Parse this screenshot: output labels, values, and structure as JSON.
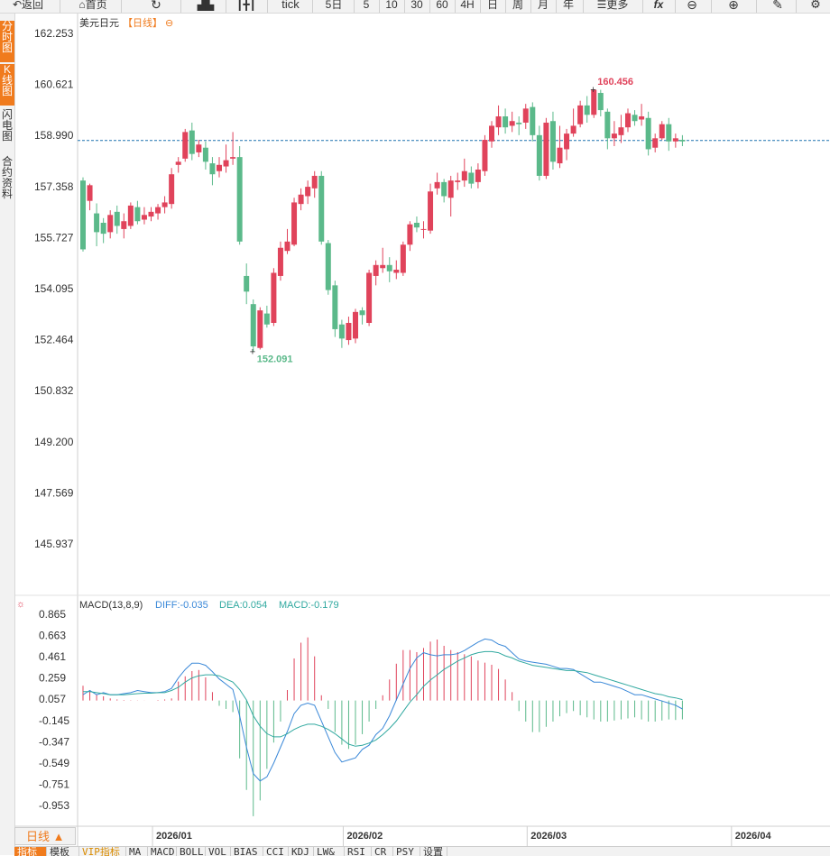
{
  "toolbar": {
    "back": "返回",
    "home": "首页",
    "tick": "tick",
    "periods": [
      "5日",
      "5",
      "10",
      "30",
      "60",
      "4H",
      "日",
      "周",
      "月",
      "年"
    ],
    "more": "更多",
    "fx": "fx"
  },
  "side_tabs": {
    "timeshare": "分时图",
    "kline": "K线图",
    "flash": "闪电图",
    "contract": "合约资料"
  },
  "header": {
    "symbol": "美元日元",
    "period": "【日线】",
    "circle": "⊖"
  },
  "macd_header": {
    "title": "MACD(13,8,9)",
    "diff": "DIFF:-0.035",
    "dea": "DEA:0.054",
    "macd": "MACD:-0.179"
  },
  "period_tab": "日线 ▲",
  "bottom_tabs": [
    "指标",
    "模板",
    "VIP指标",
    "MA",
    "MACD",
    "BOLL",
    "VOL",
    "BIAS",
    "CCI",
    "KDJ",
    "LW&",
    "RSI",
    "CR",
    "PSY",
    "设置"
  ],
  "colors": {
    "up": "#e0435b",
    "down": "#5bb98a",
    "diff": "#3a88d8",
    "dea": "#31a9a0",
    "accent": "#f07b1d",
    "last_line": "#1e72b0"
  },
  "chart_data": {
    "type": "candlestick",
    "title": "美元日元",
    "price_axis": {
      "ticks": [
        "162.253",
        "160.621",
        "158.990",
        "157.358",
        "155.727",
        "154.095",
        "152.464",
        "150.832",
        "149.200",
        "147.569",
        "145.937"
      ],
      "ylim": [
        144.3,
        163.0
      ]
    },
    "date_labels": [
      {
        "label": "2026/01",
        "index": 11
      },
      {
        "label": "2026/02",
        "index": 39
      },
      {
        "label": "2026/03",
        "index": 66
      },
      {
        "label": "2026/04",
        "index": 96
      }
    ],
    "high_annotation": "160.456",
    "low_annotation": "152.091",
    "last_price": 158.83,
    "candles": [
      [
        157.55,
        155.35,
        157.65,
        155.28
      ],
      [
        156.9,
        157.4,
        157.45,
        156.6
      ],
      [
        156.5,
        155.9,
        156.82,
        155.45
      ],
      [
        156.2,
        155.85,
        156.35,
        155.55
      ],
      [
        155.9,
        156.45,
        156.6,
        155.7
      ],
      [
        156.55,
        156.1,
        156.75,
        155.85
      ],
      [
        156.0,
        156.25,
        156.5,
        155.7
      ],
      [
        156.1,
        156.75,
        156.85,
        156.0
      ],
      [
        156.7,
        156.25,
        156.9,
        156.15
      ],
      [
        156.3,
        156.45,
        156.7,
        156.15
      ],
      [
        156.4,
        156.55,
        156.7,
        156.25
      ],
      [
        156.5,
        156.7,
        156.8,
        156.3
      ],
      [
        156.7,
        156.85,
        157.05,
        156.5
      ],
      [
        156.8,
        157.75,
        157.95,
        156.65
      ],
      [
        158.05,
        158.15,
        158.3,
        157.8
      ],
      [
        158.25,
        159.1,
        159.2,
        158.15
      ],
      [
        159.15,
        158.4,
        159.4,
        158.2
      ],
      [
        158.45,
        158.7,
        158.85,
        158.3
      ],
      [
        158.6,
        158.15,
        158.8,
        157.9
      ],
      [
        158.1,
        157.75,
        158.3,
        157.4
      ],
      [
        157.85,
        158.05,
        158.3,
        157.65
      ],
      [
        158.0,
        158.2,
        158.7,
        157.8
      ],
      [
        158.25,
        158.3,
        159.1,
        158.05
      ],
      [
        158.3,
        155.6,
        158.65,
        155.5
      ],
      [
        154.5,
        154.0,
        154.9,
        153.6
      ],
      [
        153.6,
        152.25,
        153.75,
        152.09
      ],
      [
        152.2,
        153.4,
        153.5,
        152.15
      ],
      [
        153.3,
        152.95,
        153.55,
        152.85
      ],
      [
        153.0,
        154.6,
        154.75,
        152.9
      ],
      [
        154.5,
        155.4,
        155.6,
        154.35
      ],
      [
        155.3,
        155.6,
        156.0,
        155.2
      ],
      [
        155.5,
        156.85,
        157.0,
        155.45
      ],
      [
        156.8,
        157.1,
        157.3,
        156.6
      ],
      [
        157.05,
        157.35,
        157.55,
        156.8
      ],
      [
        157.3,
        157.7,
        157.85,
        157.0
      ],
      [
        157.7,
        155.6,
        157.85,
        155.5
      ],
      [
        155.55,
        154.05,
        155.65,
        153.9
      ],
      [
        154.2,
        152.8,
        154.35,
        152.55
      ],
      [
        152.95,
        152.5,
        153.1,
        152.2
      ],
      [
        152.45,
        153.0,
        153.2,
        152.3
      ],
      [
        152.5,
        153.35,
        153.45,
        152.35
      ],
      [
        153.4,
        153.25,
        153.5,
        152.95
      ],
      [
        153.0,
        154.6,
        154.7,
        152.9
      ],
      [
        154.5,
        154.85,
        155.0,
        154.2
      ],
      [
        154.75,
        154.85,
        155.4,
        154.6
      ],
      [
        154.85,
        154.65,
        155.1,
        154.3
      ],
      [
        154.6,
        154.7,
        155.0,
        154.4
      ],
      [
        154.6,
        155.5,
        155.6,
        154.5
      ],
      [
        155.5,
        156.15,
        156.25,
        155.3
      ],
      [
        156.2,
        156.05,
        156.4,
        155.9
      ],
      [
        156.0,
        156.0,
        156.25,
        155.7
      ],
      [
        155.95,
        157.2,
        157.45,
        155.85
      ],
      [
        157.3,
        157.5,
        157.8,
        157.1
      ],
      [
        157.5,
        157.05,
        157.6,
        156.85
      ],
      [
        157.0,
        157.55,
        157.7,
        156.4
      ],
      [
        157.5,
        157.55,
        157.8,
        157.25
      ],
      [
        157.55,
        157.85,
        158.25,
        157.35
      ],
      [
        157.8,
        157.45,
        158.0,
        157.3
      ],
      [
        157.5,
        157.9,
        158.1,
        157.3
      ],
      [
        157.85,
        158.85,
        159.0,
        157.7
      ],
      [
        158.8,
        159.3,
        159.45,
        158.6
      ],
      [
        159.25,
        159.6,
        159.95,
        159.0
      ],
      [
        159.6,
        159.25,
        159.85,
        159.05
      ],
      [
        159.3,
        159.45,
        159.75,
        159.1
      ],
      [
        159.4,
        159.35,
        159.6,
        159.0
      ],
      [
        159.4,
        159.85,
        160.0,
        159.2
      ],
      [
        159.9,
        159.0,
        160.05,
        158.8
      ],
      [
        159.0,
        157.7,
        159.3,
        157.55
      ],
      [
        157.7,
        159.4,
        159.55,
        157.6
      ],
      [
        159.45,
        158.15,
        159.75,
        157.9
      ],
      [
        158.1,
        158.6,
        159.3,
        157.95
      ],
      [
        158.55,
        159.05,
        159.2,
        158.2
      ],
      [
        159.05,
        159.3,
        159.85,
        158.95
      ],
      [
        159.35,
        159.95,
        160.1,
        159.25
      ],
      [
        159.95,
        159.65,
        160.25,
        159.4
      ],
      [
        159.65,
        160.45,
        160.46,
        159.55
      ],
      [
        160.35,
        159.8,
        160.45,
        159.6
      ],
      [
        159.75,
        158.9,
        159.85,
        158.55
      ],
      [
        158.9,
        159.05,
        159.45,
        158.65
      ],
      [
        159.0,
        159.25,
        159.65,
        158.75
      ],
      [
        159.25,
        159.7,
        159.85,
        159.1
      ],
      [
        159.65,
        159.45,
        159.8,
        159.3
      ],
      [
        159.5,
        159.6,
        160.0,
        159.3
      ],
      [
        159.55,
        158.55,
        159.75,
        158.35
      ],
      [
        158.6,
        158.9,
        159.05,
        158.45
      ],
      [
        158.9,
        159.35,
        159.45,
        158.85
      ],
      [
        159.35,
        158.8,
        159.55,
        158.5
      ],
      [
        158.8,
        158.9,
        159.05,
        158.6
      ],
      [
        158.85,
        158.8,
        159.0,
        158.65
      ]
    ],
    "macd_axis": {
      "ticks": [
        "0.865",
        "0.663",
        "0.461",
        "0.259",
        "0.057",
        "-0.145",
        "-0.347",
        "-0.549",
        "-0.751",
        "-0.953"
      ],
      "ylim": [
        -1.155,
        0.865
      ]
    },
    "macd_hist": [
      0.14,
      0.09,
      0.06,
      0.04,
      0.02,
      0.01,
      0.005,
      0.003,
      0.002,
      0.001,
      0.0,
      0.005,
      0.01,
      0.02,
      0.18,
      0.23,
      0.28,
      0.29,
      0.22,
      0.08,
      -0.05,
      -0.08,
      -0.11,
      -0.55,
      -0.85,
      -1.1,
      -0.95,
      -0.65,
      -0.4,
      -0.2,
      0.1,
      0.4,
      0.55,
      0.6,
      0.42,
      0.05,
      -0.08,
      -0.3,
      -0.42,
      -0.46,
      -0.42,
      -0.32,
      -0.2,
      -0.08,
      0.05,
      0.2,
      0.35,
      0.48,
      0.48,
      0.46,
      0.5,
      0.56,
      0.58,
      0.52,
      0.48,
      0.46,
      0.44,
      0.42,
      0.38,
      0.36,
      0.34,
      0.3,
      0.2,
      0.08,
      -0.1,
      -0.2,
      -0.3,
      -0.3,
      -0.25,
      -0.2,
      -0.15,
      -0.12,
      -0.1,
      -0.14,
      -0.16,
      -0.18,
      -0.2,
      -0.2,
      -0.19,
      -0.18,
      -0.17,
      -0.16,
      -0.18,
      -0.2,
      -0.2,
      -0.19,
      -0.18,
      -0.185,
      -0.179
    ],
    "macd_diff": [
      0.1,
      0.14,
      0.1,
      0.12,
      0.1,
      0.1,
      0.11,
      0.12,
      0.14,
      0.13,
      0.12,
      0.12,
      0.13,
      0.16,
      0.26,
      0.34,
      0.4,
      0.4,
      0.38,
      0.32,
      0.25,
      0.2,
      0.15,
      -0.1,
      -0.4,
      -0.65,
      -0.72,
      -0.68,
      -0.55,
      -0.4,
      -0.25,
      -0.08,
      0.0,
      0.02,
      0.0,
      -0.15,
      -0.3,
      -0.45,
      -0.54,
      -0.52,
      -0.5,
      -0.42,
      -0.38,
      -0.28,
      -0.22,
      -0.1,
      0.05,
      0.2,
      0.35,
      0.45,
      0.5,
      0.48,
      0.47,
      0.48,
      0.48,
      0.49,
      0.52,
      0.56,
      0.6,
      0.63,
      0.62,
      0.58,
      0.56,
      0.5,
      0.44,
      0.42,
      0.41,
      0.4,
      0.39,
      0.37,
      0.35,
      0.35,
      0.34,
      0.3,
      0.26,
      0.22,
      0.22,
      0.2,
      0.18,
      0.16,
      0.13,
      0.1,
      0.1,
      0.08,
      0.06,
      0.04,
      0.02,
      0.0,
      -0.035
    ],
    "macd_dea": [
      0.13,
      0.13,
      0.12,
      0.11,
      0.1,
      0.1,
      0.1,
      0.105,
      0.11,
      0.115,
      0.115,
      0.12,
      0.12,
      0.14,
      0.17,
      0.22,
      0.26,
      0.28,
      0.29,
      0.29,
      0.28,
      0.25,
      0.22,
      0.15,
      0.05,
      -0.1,
      -0.2,
      -0.27,
      -0.3,
      -0.3,
      -0.27,
      -0.23,
      -0.2,
      -0.18,
      -0.18,
      -0.2,
      -0.23,
      -0.27,
      -0.32,
      -0.37,
      -0.39,
      -0.38,
      -0.36,
      -0.33,
      -0.28,
      -0.22,
      -0.15,
      -0.06,
      0.03,
      0.1,
      0.18,
      0.24,
      0.29,
      0.34,
      0.38,
      0.42,
      0.45,
      0.48,
      0.5,
      0.51,
      0.51,
      0.5,
      0.47,
      0.45,
      0.42,
      0.4,
      0.38,
      0.37,
      0.36,
      0.35,
      0.34,
      0.33,
      0.33,
      0.32,
      0.31,
      0.29,
      0.27,
      0.25,
      0.23,
      0.21,
      0.19,
      0.17,
      0.15,
      0.13,
      0.11,
      0.1,
      0.08,
      0.07,
      0.054
    ]
  }
}
